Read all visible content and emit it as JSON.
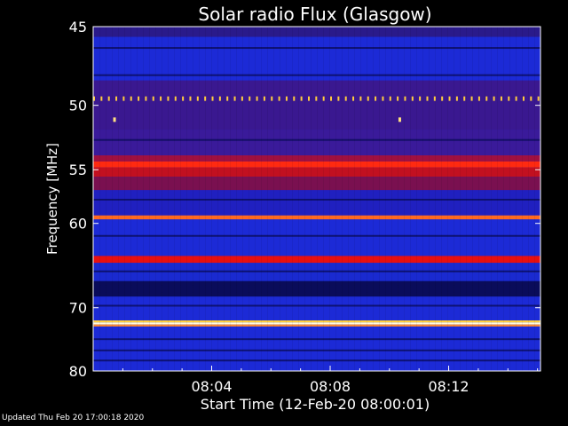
{
  "footer": "Updated Thu Feb 20 17:00:18 2020",
  "chart_data": {
    "type": "heatmap",
    "title": "Solar radio Flux (Glasgow)",
    "xlabel": "Start Time (12-Feb-20 08:00:01)",
    "ylabel": "Frequency [MHz]",
    "x_range_minutes": [
      0,
      15.1
    ],
    "x_ticks": [
      {
        "label": "08:04",
        "minute": 4
      },
      {
        "label": "08:08",
        "minute": 8
      },
      {
        "label": "08:12",
        "minute": 12
      }
    ],
    "ylim": [
      45,
      80
    ],
    "y_scale": "reciprocal",
    "y_ticks": [
      45,
      50,
      55,
      60,
      70,
      80
    ],
    "colors": {
      "background": "#000000",
      "base_blue": "#1c2ad6",
      "dark_blue": "#0a0c5a",
      "red": "#d81010",
      "orange": "#ff5a10",
      "yellow": "#ffee60",
      "white": "#fffbe0"
    },
    "bands": [
      {
        "freq_from": 45.0,
        "freq_to": 45.6,
        "color": "#2a1a8a"
      },
      {
        "freq_from": 45.6,
        "freq_to": 48.3,
        "color": "#1c2ad6"
      },
      {
        "freq_from": 48.3,
        "freq_to": 51.8,
        "color": "#3a1890"
      },
      {
        "freq_from": 51.8,
        "freq_to": 53.8,
        "color": "#3a1a9a"
      },
      {
        "freq_from": 53.8,
        "freq_to": 54.3,
        "color": "#a01040"
      },
      {
        "freq_from": 54.3,
        "freq_to": 54.8,
        "color": "#ff2a10"
      },
      {
        "freq_from": 54.8,
        "freq_to": 55.6,
        "color": "#c21020"
      },
      {
        "freq_from": 55.6,
        "freq_to": 56.8,
        "color": "#7a1050"
      },
      {
        "freq_from": 56.8,
        "freq_to": 59.2,
        "color": "#2020c0"
      },
      {
        "freq_from": 59.2,
        "freq_to": 59.6,
        "color": "#ff6a20"
      },
      {
        "freq_from": 59.6,
        "freq_to": 63.5,
        "color": "#1c2ad6"
      },
      {
        "freq_from": 63.5,
        "freq_to": 64.3,
        "color": "#e81010"
      },
      {
        "freq_from": 64.3,
        "freq_to": 66.5,
        "color": "#1a2ad0"
      },
      {
        "freq_from": 66.5,
        "freq_to": 68.5,
        "color": "#0a0c5a"
      },
      {
        "freq_from": 68.5,
        "freq_to": 71.8,
        "color": "#1c2ad6"
      },
      {
        "freq_from": 71.8,
        "freq_to": 72.1,
        "color": "#ffd040"
      },
      {
        "freq_from": 72.1,
        "freq_to": 72.4,
        "color": "#fffbe0"
      },
      {
        "freq_from": 72.4,
        "freq_to": 72.7,
        "color": "#ff8a30"
      },
      {
        "freq_from": 72.7,
        "freq_to": 80.0,
        "color": "#1c2ad6"
      }
    ],
    "dark_lines": [
      46.2,
      47.9,
      52.5,
      57.6,
      61.2,
      65.2,
      67.0,
      68.0,
      69.6,
      74.5,
      76.3,
      78.0
    ],
    "interference_line": {
      "freq": 49.5,
      "every_minutes": 0.25,
      "color": "#ffcc40"
    },
    "spots": [
      {
        "minute": 0.72,
        "freq": 51.0,
        "color": "#ffe080"
      },
      {
        "minute": 10.35,
        "freq": 51.0,
        "color": "#ffe080"
      }
    ]
  }
}
